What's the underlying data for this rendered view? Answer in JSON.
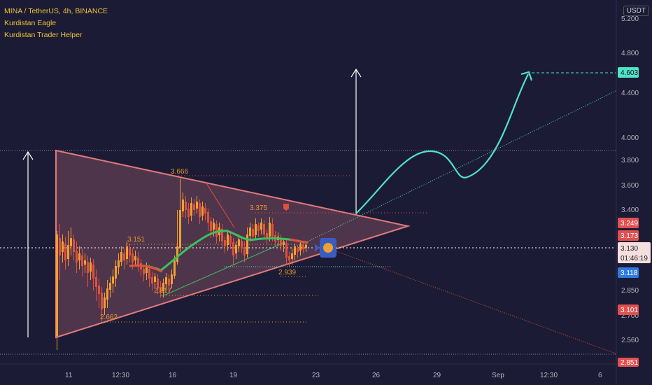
{
  "legend": {
    "symbol": "MINA / TetherUS, 4h, BINANCE",
    "indicator1": "Kurdistan Eagle",
    "indicator2": "Kurdistan Trader Helper"
  },
  "currency_button": "USDT",
  "price_axis": {
    "ticks": [
      "5.200",
      "4.800",
      "4.400",
      "4.000",
      "3.800",
      "3.600",
      "3.400",
      "2.850",
      "2.700",
      "2.560"
    ],
    "tag_target": "4.603",
    "tag_upper": "3.249",
    "tag_mid": "3.173",
    "tag_current": "3.130",
    "tag_countdown": "01:46:19",
    "tag_low": "3.118",
    "tag_stop": "3.101",
    "tag_bottom": "2.851"
  },
  "time_axis": {
    "ticks": [
      "11",
      "12:30",
      "16",
      "19",
      "23",
      "26",
      "29",
      "Sep",
      "12:30",
      "6"
    ]
  },
  "annotations": {
    "high_label": "3.666",
    "mid_high_label": "3.375",
    "left_label": "3.151",
    "low_label": "2.662",
    "second_low_label": "2.817",
    "recent_low_label": "2.939"
  },
  "colors": {
    "background": "#1c1b35",
    "triangle_fill": "#7a4a5e",
    "triangle_edge": "#e07a7a",
    "projection": "#4fe3c8",
    "candle_up": "#f0a030",
    "candle_down": "#e0503c",
    "label_orange": "#e89a2a",
    "price_current": "#ffffff"
  },
  "chart_data": {
    "type": "candlestick",
    "title": "MINA / TetherUS, 4h, BINANCE",
    "ylim": [
      2.5,
      5.3
    ],
    "y_tick_values": [
      5.2,
      4.8,
      4.4,
      4.0,
      3.8,
      3.6,
      3.4,
      2.85,
      2.7,
      2.56
    ],
    "x_ticks": [
      "11",
      "12:30",
      "16",
      "19",
      "23",
      "26",
      "29",
      "Sep",
      "12:30",
      "6"
    ],
    "levels": [
      3.666,
      3.375,
      3.151,
      2.939,
      2.817,
      2.662
    ],
    "projection_target": 4.603,
    "current_price": 3.13
  }
}
